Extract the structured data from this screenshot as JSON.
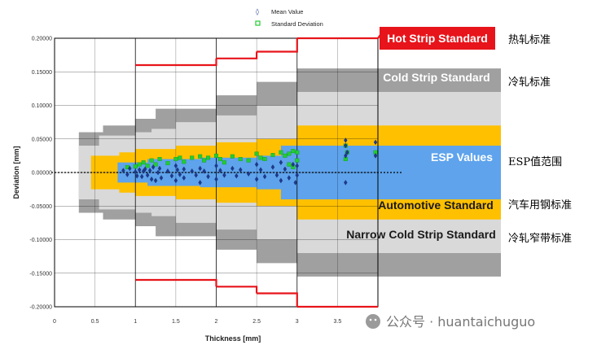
{
  "chart_data": {
    "type": "scatter",
    "xlabel": "Thickness [mm]",
    "ylabel": "Deviation [mm]",
    "xlim": [
      0,
      4
    ],
    "ylim": [
      -0.2,
      0.2
    ],
    "xticks": [
      "0",
      "0.5",
      "1",
      "1.5",
      "2",
      "2.5",
      "3",
      "3.5",
      "4"
    ],
    "yticks": [
      "0.20000",
      "0.15000",
      "0.10000",
      "0.05000",
      "0.00000",
      "-0.05000",
      "-0.10000",
      "-0.15000",
      "-0.20000"
    ],
    "legend": {
      "position": "top-center",
      "entries": [
        "Mean Value",
        "Standard Deviation"
      ]
    },
    "grid": true,
    "colors": {
      "hot": "#e8141b",
      "cold": "#a0a0a0",
      "narrow": "#d9d9d9",
      "automotive": "#ffc000",
      "esp": "#5ea3ec",
      "mean": "#1f3a8a",
      "std": "#22cc33"
    },
    "bands": [
      {
        "name": "Hot Strip Standard",
        "label_cn": "热轧标准",
        "type": "line",
        "steps": [
          [
            1.0,
            0.16
          ],
          [
            2.0,
            0.17
          ],
          [
            2.5,
            0.18
          ],
          [
            3.0,
            0.2
          ],
          [
            4.0,
            0.2
          ]
        ]
      },
      {
        "name": "Cold Strip Standard",
        "label_cn": "冷轧标准",
        "type": "area",
        "steps": [
          [
            0.3,
            0.06
          ],
          [
            0.6,
            0.07
          ],
          [
            1.0,
            0.08
          ],
          [
            1.25,
            0.095
          ],
          [
            2.0,
            0.115
          ],
          [
            2.5,
            0.135
          ],
          [
            3.0,
            0.155
          ],
          [
            4.0,
            0.155
          ]
        ]
      },
      {
        "name": "Narrow Cold Strip Standard",
        "label_cn": "冷轧窄带标准",
        "type": "area",
        "steps": [
          [
            0.3,
            0.04
          ],
          [
            0.55,
            0.055
          ],
          [
            1.0,
            0.06
          ],
          [
            1.2,
            0.065
          ],
          [
            1.5,
            0.075
          ],
          [
            2.0,
            0.085
          ],
          [
            2.5,
            0.1
          ],
          [
            3.0,
            0.12
          ],
          [
            4.0,
            0.12
          ]
        ]
      },
      {
        "name": "Automotive Standard",
        "label_cn": "汽车用钢标准",
        "type": "area",
        "steps": [
          [
            0.45,
            0.025
          ],
          [
            0.8,
            0.03
          ],
          [
            1.0,
            0.035
          ],
          [
            1.5,
            0.04
          ],
          [
            2.0,
            0.045
          ],
          [
            2.5,
            0.05
          ],
          [
            3.0,
            0.07
          ],
          [
            4.0,
            0.07
          ]
        ]
      },
      {
        "name": "ESP Values",
        "label_cn": "ESP值范围",
        "type": "area",
        "steps": [
          [
            0.78,
            0.015
          ],
          [
            1.15,
            0.02
          ],
          [
            1.5,
            0.02
          ],
          [
            1.8,
            0.022
          ],
          [
            2.5,
            0.025
          ],
          [
            2.8,
            0.04
          ],
          [
            3.6,
            0.045
          ],
          [
            3.6,
            0.04
          ],
          [
            4.0,
            0.04
          ]
        ]
      }
    ],
    "series": [
      {
        "name": "Mean Value",
        "marker": "diamond",
        "points": [
          [
            0.85,
            0.003
          ],
          [
            0.9,
            -0.003
          ],
          [
            0.93,
            0.006
          ],
          [
            1.0,
            0.001
          ],
          [
            1.02,
            -0.005
          ],
          [
            1.05,
            0.004
          ],
          [
            1.08,
            -0.006
          ],
          [
            1.1,
            0.002
          ],
          [
            1.12,
            0.005
          ],
          [
            1.15,
            -0.004
          ],
          [
            1.18,
            0.003
          ],
          [
            1.2,
            -0.01
          ],
          [
            1.22,
            0.008
          ],
          [
            1.25,
            -0.012
          ],
          [
            1.28,
            0.0
          ],
          [
            1.3,
            0.006
          ],
          [
            1.32,
            -0.008
          ],
          [
            1.4,
            0.002
          ],
          [
            1.45,
            -0.005
          ],
          [
            1.5,
            0.01
          ],
          [
            1.5,
            -0.012
          ],
          [
            1.52,
            0.004
          ],
          [
            1.55,
            -0.003
          ],
          [
            1.6,
            0.005
          ],
          [
            1.6,
            -0.008
          ],
          [
            1.7,
            0.002
          ],
          [
            1.75,
            -0.004
          ],
          [
            1.8,
            0.006
          ],
          [
            1.8,
            -0.015
          ],
          [
            1.85,
            0.002
          ],
          [
            1.9,
            -0.006
          ],
          [
            2.0,
            0.01
          ],
          [
            2.0,
            -0.01
          ],
          [
            2.05,
            0.003
          ],
          [
            2.1,
            -0.004
          ],
          [
            2.2,
            0.006
          ],
          [
            2.25,
            -0.005
          ],
          [
            2.3,
            0.004
          ],
          [
            2.4,
            -0.002
          ],
          [
            2.5,
            0.012
          ],
          [
            2.5,
            -0.01
          ],
          [
            2.55,
            0.004
          ],
          [
            2.6,
            -0.006
          ],
          [
            2.7,
            0.008
          ],
          [
            2.75,
            -0.004
          ],
          [
            2.8,
            0.015
          ],
          [
            2.8,
            -0.012
          ],
          [
            2.85,
            0.005
          ],
          [
            2.9,
            -0.008
          ],
          [
            2.95,
            0.012
          ],
          [
            2.98,
            -0.015
          ],
          [
            3.0,
            0.01
          ],
          [
            3.0,
            -0.004
          ],
          [
            3.6,
            0.048
          ],
          [
            3.6,
            0.025
          ],
          [
            3.6,
            -0.015
          ],
          [
            3.62,
            0.03
          ],
          [
            3.6,
            0.04
          ],
          [
            3.97,
            0.045
          ],
          [
            3.97,
            0.025
          ]
        ]
      },
      {
        "name": "Standard Deviation",
        "marker": "square",
        "points": [
          [
            0.9,
            0.008
          ],
          [
            1.0,
            0.009
          ],
          [
            1.05,
            0.012
          ],
          [
            1.1,
            0.015
          ],
          [
            1.15,
            0.01
          ],
          [
            1.2,
            0.018
          ],
          [
            1.25,
            0.012
          ],
          [
            1.3,
            0.02
          ],
          [
            1.4,
            0.014
          ],
          [
            1.5,
            0.02
          ],
          [
            1.55,
            0.022
          ],
          [
            1.6,
            0.016
          ],
          [
            1.7,
            0.022
          ],
          [
            1.8,
            0.024
          ],
          [
            1.85,
            0.018
          ],
          [
            1.9,
            0.022
          ],
          [
            2.0,
            0.025
          ],
          [
            2.05,
            0.02
          ],
          [
            2.1,
            0.015
          ],
          [
            2.2,
            0.024
          ],
          [
            2.3,
            0.02
          ],
          [
            2.4,
            0.018
          ],
          [
            2.5,
            0.028
          ],
          [
            2.55,
            0.022
          ],
          [
            2.6,
            0.02
          ],
          [
            2.7,
            0.026
          ],
          [
            2.8,
            0.03
          ],
          [
            2.85,
            0.025
          ],
          [
            2.9,
            0.028
          ],
          [
            2.95,
            0.032
          ],
          [
            3.0,
            0.03
          ],
          [
            3.0,
            0.018
          ],
          [
            2.9,
            0.012
          ],
          [
            2.95,
            0.008
          ],
          [
            3.6,
            0.04
          ],
          [
            3.62,
            0.03
          ],
          [
            3.6,
            0.02
          ],
          [
            3.97,
            0.03
          ]
        ]
      }
    ]
  },
  "watermark": "公众号 · huantaichuguo"
}
